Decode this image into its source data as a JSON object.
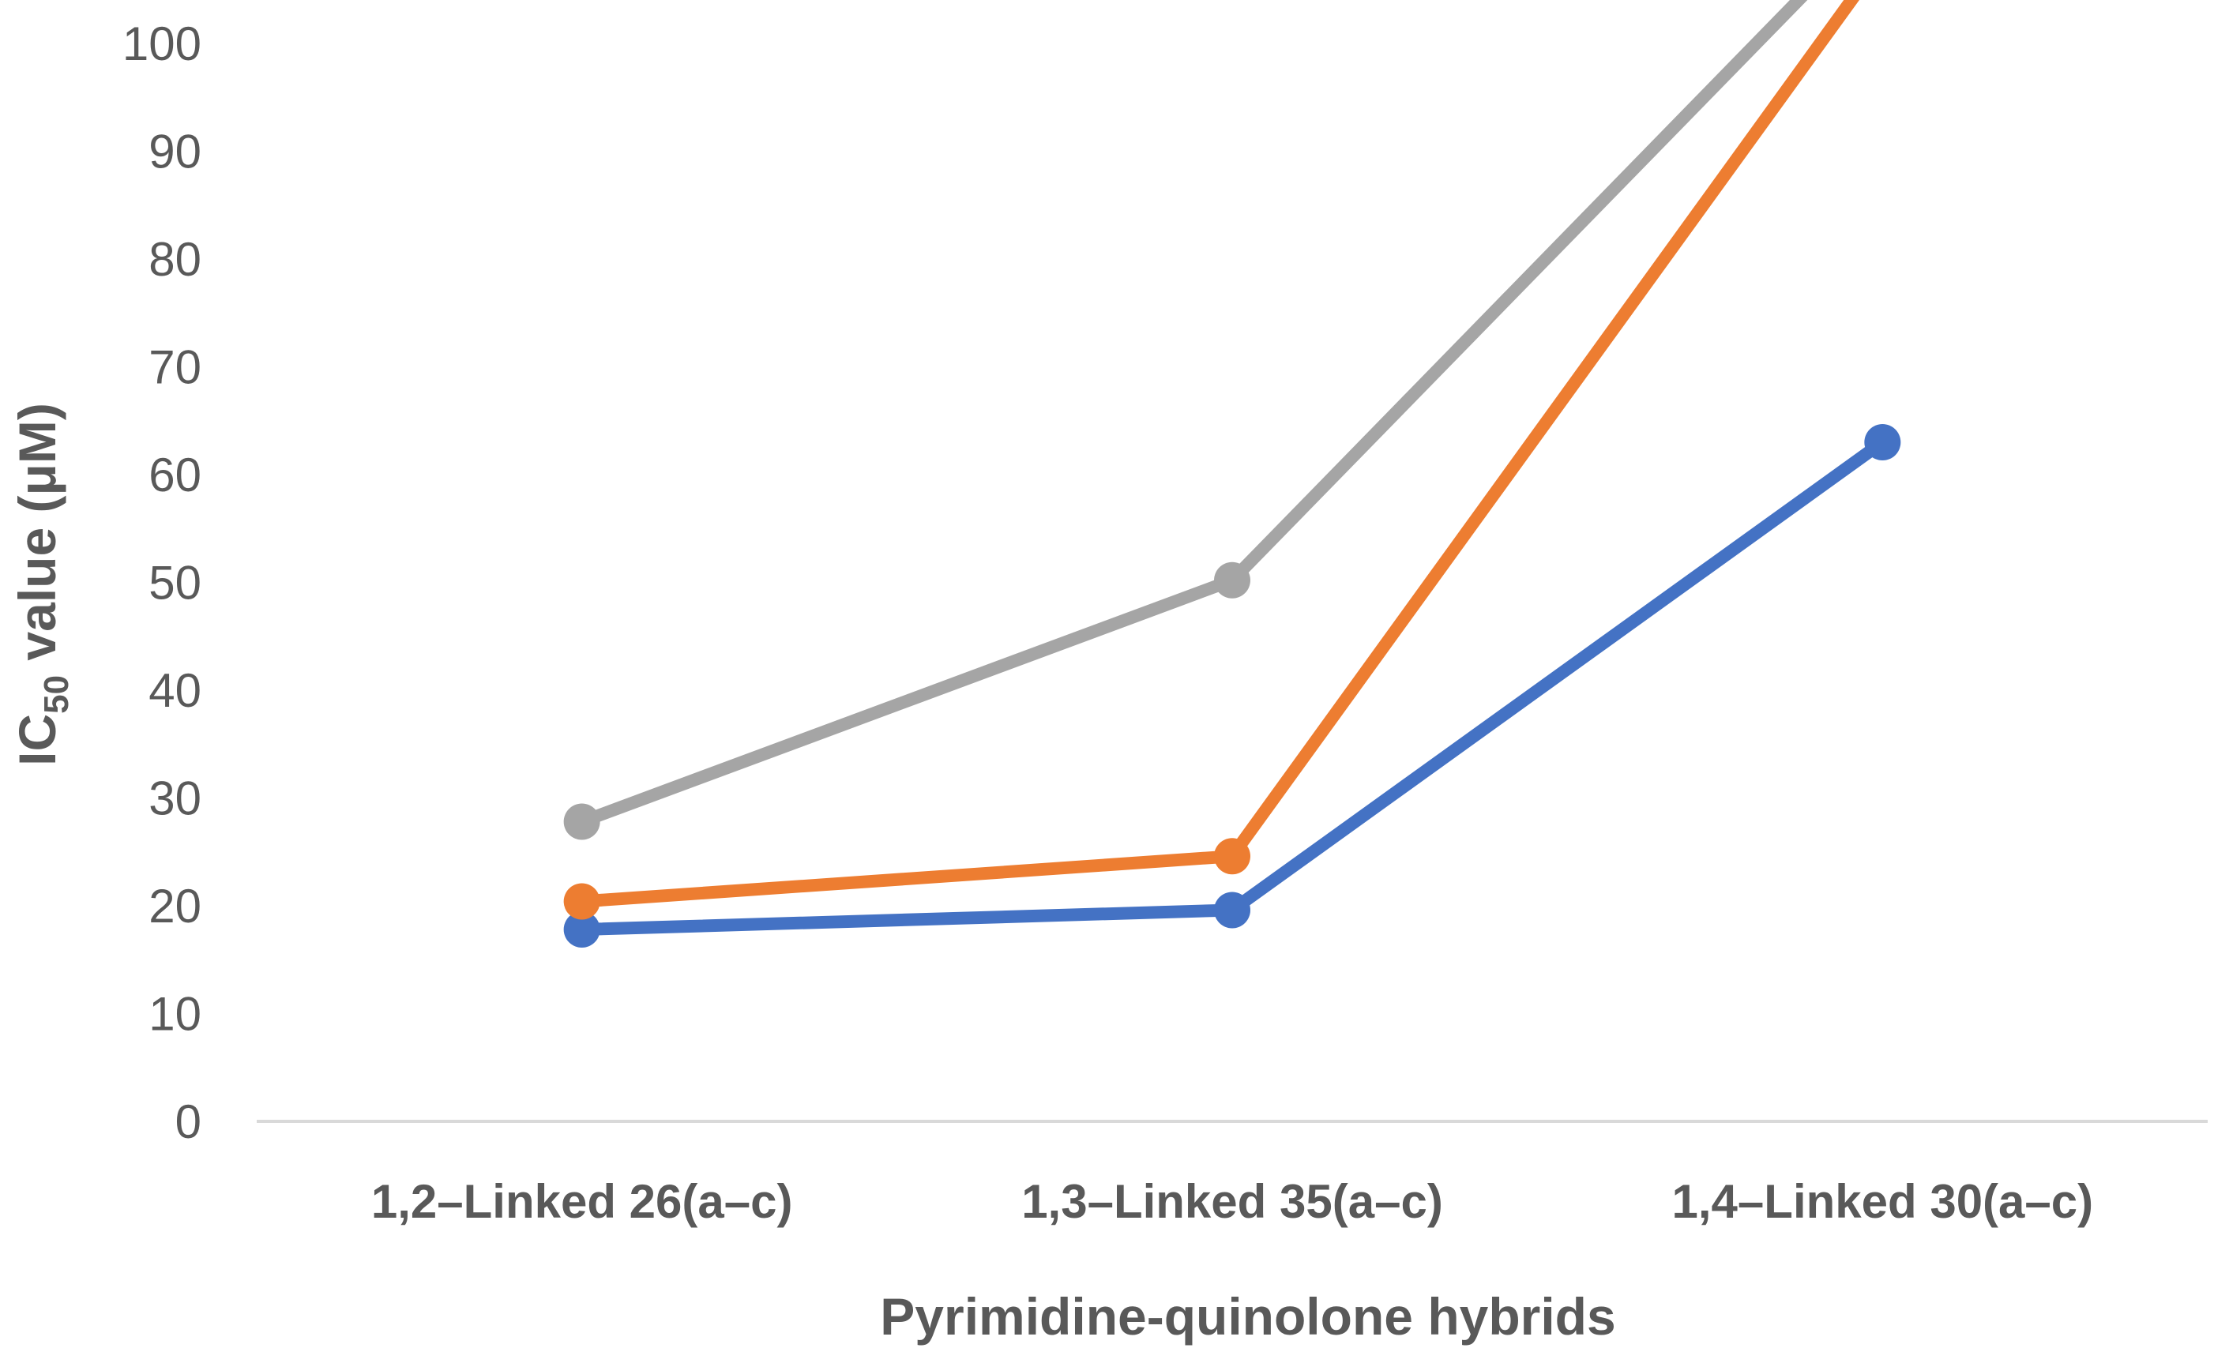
{
  "chart_data": {
    "type": "line",
    "categories": [
      "1,2–Linked 26(a–c)",
      "1,3–Linked 35(a–c)",
      "1,4–Linked 30(a–c)"
    ],
    "series": [
      {
        "color": "#4472C4",
        "values": [
          17.8,
          19.6,
          63.0
        ]
      },
      {
        "color": "#ED7D31",
        "values": [
          20.4,
          24.6,
          108.0
        ]
      },
      {
        "color": "#A5A5A5",
        "values": [
          27.8,
          50.2,
          112.0
        ]
      }
    ],
    "title": "",
    "xlabel": "Pyrimidine-quinolone hybrids",
    "ylabel": {
      "prefix": "IC",
      "subscript": "50",
      "suffix": " value (μM)"
    },
    "ylim": [
      0,
      100
    ],
    "yticks": [
      "0",
      "10",
      "20",
      "30",
      "40",
      "50",
      "60",
      "70",
      "80",
      "90",
      "100"
    ],
    "grid": false,
    "legend": "none",
    "axis_color": "#D9D9D9",
    "text_color": "#595959"
  }
}
